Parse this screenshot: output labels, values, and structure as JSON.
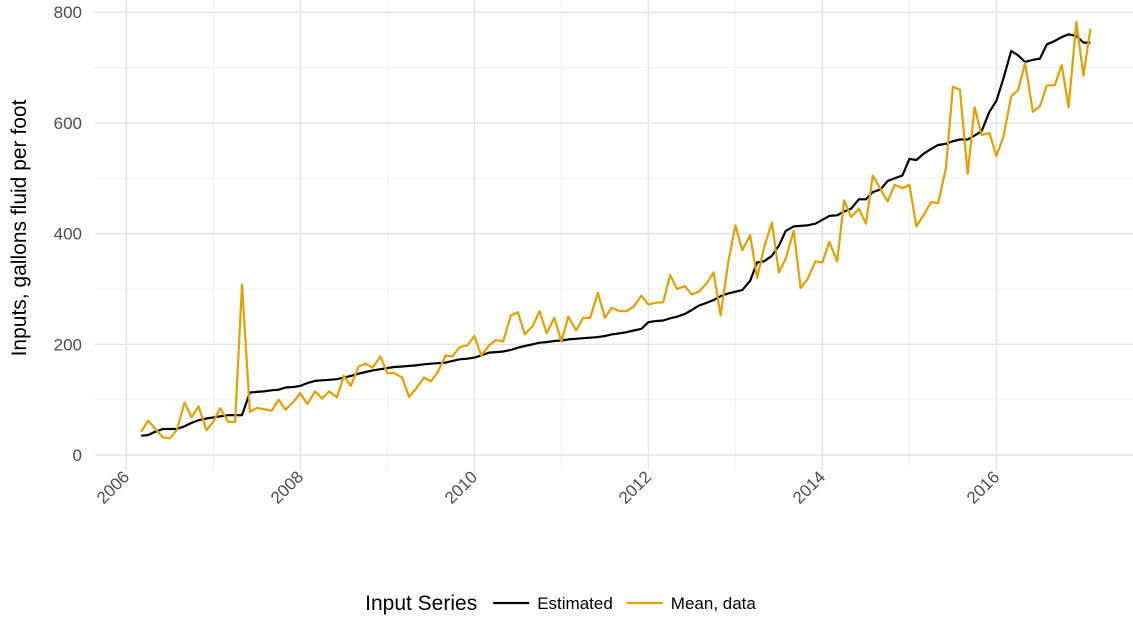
{
  "chart_data": {
    "type": "line",
    "y_label": "Inputs, gallons fluid per foot",
    "legend_title": "Input Series",
    "legend_position": "bottom",
    "grid": true,
    "xlim": [
      2005.64,
      2017.57
    ],
    "xticks": [
      2006,
      2008,
      2010,
      2012,
      2014,
      2016
    ],
    "ylim": [
      -27,
      822
    ],
    "yticks": [
      0,
      200,
      400,
      600,
      800
    ],
    "x": [
      2006.17,
      2006.25,
      2006.33,
      2006.42,
      2006.5,
      2006.58,
      2006.67,
      2006.75,
      2006.83,
      2006.92,
      2007,
      2007.08,
      2007.17,
      2007.25,
      2007.33,
      2007.42,
      2007.5,
      2007.58,
      2007.67,
      2007.75,
      2007.83,
      2007.92,
      2008,
      2008.08,
      2008.17,
      2008.25,
      2008.33,
      2008.42,
      2008.5,
      2008.58,
      2008.67,
      2008.75,
      2008.83,
      2008.92,
      2009,
      2009.08,
      2009.17,
      2009.25,
      2009.33,
      2009.42,
      2009.5,
      2009.58,
      2009.67,
      2009.75,
      2009.83,
      2009.92,
      2010,
      2010.08,
      2010.17,
      2010.25,
      2010.33,
      2010.42,
      2010.5,
      2010.58,
      2010.67,
      2010.75,
      2010.83,
      2010.92,
      2011,
      2011.08,
      2011.17,
      2011.25,
      2011.33,
      2011.42,
      2011.5,
      2011.58,
      2011.67,
      2011.75,
      2011.83,
      2011.92,
      2012,
      2012.08,
      2012.17,
      2012.25,
      2012.33,
      2012.42,
      2012.5,
      2012.58,
      2012.67,
      2012.75,
      2012.83,
      2012.92,
      2013,
      2013.08,
      2013.17,
      2013.25,
      2013.33,
      2013.42,
      2013.5,
      2013.58,
      2013.67,
      2013.75,
      2013.83,
      2013.92,
      2014,
      2014.08,
      2014.17,
      2014.25,
      2014.33,
      2014.42,
      2014.5,
      2014.58,
      2014.67,
      2014.75,
      2014.83,
      2014.92,
      2015,
      2015.08,
      2015.17,
      2015.25,
      2015.33,
      2015.42,
      2015.5,
      2015.58,
      2015.67,
      2015.75,
      2015.83,
      2015.92,
      2016,
      2016.08,
      2016.17,
      2016.25,
      2016.33,
      2016.42,
      2016.5,
      2016.58,
      2016.67,
      2016.75,
      2016.83,
      2016.92,
      2017,
      2017.08
    ],
    "series": [
      {
        "name": "Estimated",
        "color": "#000000",
        "values": [
          35,
          36,
          42,
          47,
          47,
          47,
          52,
          58,
          63,
          66,
          68,
          70,
          72,
          72,
          72,
          113,
          114,
          115,
          117,
          118,
          122,
          123,
          125,
          130,
          134,
          135,
          136,
          137,
          140,
          143,
          147,
          150,
          153,
          155,
          157,
          159,
          160,
          161,
          162,
          164,
          165,
          166,
          167,
          170,
          173,
          174,
          176,
          180,
          185,
          186,
          187,
          190,
          194,
          197,
          200,
          203,
          204,
          206,
          207,
          209,
          210,
          211,
          212,
          213,
          215,
          218,
          220,
          222,
          225,
          228,
          240,
          242,
          243,
          247,
          250,
          255,
          262,
          270,
          275,
          280,
          287,
          292,
          295,
          298,
          315,
          348,
          350,
          360,
          378,
          405,
          413,
          414,
          415,
          418,
          425,
          432,
          433,
          440,
          445,
          462,
          462,
          475,
          480,
          495,
          500,
          505,
          535,
          533,
          545,
          553,
          560,
          562,
          567,
          570,
          570,
          577,
          585,
          620,
          640,
          680,
          730,
          722,
          710,
          714,
          716,
          742,
          748,
          755,
          760,
          757,
          745,
          745
        ]
      },
      {
        "name": "Mean, data",
        "color": "#e69f00",
        "values": [
          42,
          62,
          48,
          32,
          30,
          45,
          95,
          68,
          88,
          45,
          60,
          85,
          60,
          60,
          308,
          78,
          85,
          83,
          80,
          100,
          82,
          96,
          112,
          92,
          115,
          102,
          115,
          104,
          143,
          125,
          160,
          165,
          158,
          178,
          148,
          148,
          140,
          105,
          120,
          140,
          133,
          150,
          180,
          178,
          195,
          198,
          215,
          180,
          198,
          208,
          205,
          252,
          258,
          218,
          233,
          260,
          220,
          248,
          205,
          250,
          225,
          248,
          248,
          293,
          248,
          266,
          260,
          260,
          268,
          288,
          272,
          275,
          276,
          325,
          300,
          305,
          290,
          295,
          310,
          330,
          252,
          350,
          415,
          370,
          397,
          320,
          375,
          420,
          330,
          355,
          405,
          302,
          318,
          350,
          348,
          385,
          350,
          460,
          430,
          445,
          418,
          505,
          480,
          458,
          488,
          482,
          488,
          413,
          435,
          457,
          455,
          518,
          665,
          660,
          508,
          628,
          578,
          582,
          540,
          575,
          648,
          660,
          708,
          620,
          630,
          668,
          668,
          705,
          628,
          783,
          685,
          770
        ]
      }
    ]
  }
}
